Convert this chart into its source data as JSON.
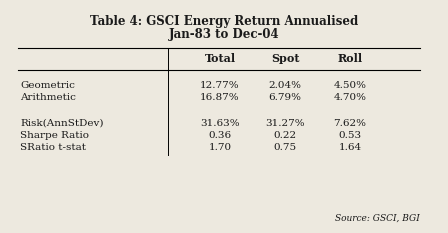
{
  "title_line1": "Table 4: GSCI Energy Return Annualised",
  "title_line2": "Jan-83 to Dec-04",
  "col_headers": [
    "Total",
    "Spot",
    "Roll"
  ],
  "row_labels": [
    "Geometric",
    "Arithmetic",
    "",
    "Risk(AnnStDev)",
    "Sharpe Ratio",
    "SRatio t-stat"
  ],
  "table_data": [
    [
      "12.77%",
      "2.04%",
      "4.50%"
    ],
    [
      "16.87%",
      "6.79%",
      "4.70%"
    ],
    [
      "",
      "",
      ""
    ],
    [
      "31.63%",
      "31.27%",
      "7.62%"
    ],
    [
      "0.36",
      "0.22",
      "0.53"
    ],
    [
      "1.70",
      "0.75",
      "1.64"
    ]
  ],
  "source_text": "Source: GSCI, BGI",
  "bg_color": "#ede9df",
  "text_color": "#1a1a1a",
  "title_fontsize": 8.5,
  "header_fontsize": 8.0,
  "body_fontsize": 7.5,
  "source_fontsize": 6.5
}
